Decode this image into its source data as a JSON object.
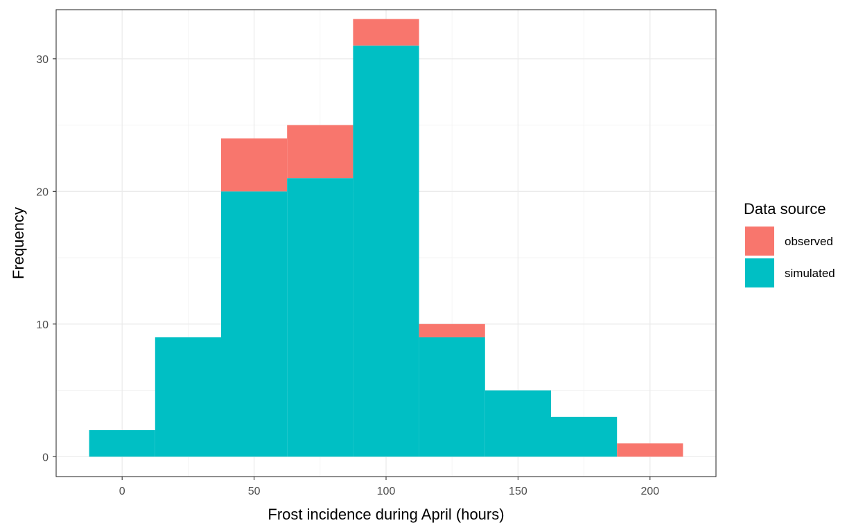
{
  "chart_data": {
    "type": "bar",
    "stacked": true,
    "bin_width": 25,
    "bins": [
      {
        "x": 0,
        "simulated": 2,
        "observed": 0
      },
      {
        "x": 25,
        "simulated": 9,
        "observed": 0
      },
      {
        "x": 50,
        "simulated": 20,
        "observed": 4
      },
      {
        "x": 75,
        "simulated": 21,
        "observed": 4
      },
      {
        "x": 100,
        "simulated": 31,
        "observed": 2
      },
      {
        "x": 125,
        "simulated": 9,
        "observed": 1
      },
      {
        "x": 150,
        "simulated": 5,
        "observed": 0
      },
      {
        "x": 175,
        "simulated": 3,
        "observed": 0
      },
      {
        "x": 200,
        "simulated": 0,
        "observed": 1
      }
    ],
    "series": [
      {
        "name": "observed",
        "color": "#F8766D"
      },
      {
        "name": "simulated",
        "color": "#00BFC4"
      }
    ],
    "xlabel": "Frost incidence during April (hours)",
    "ylabel": "Frequency",
    "xlim": [
      -25,
      225
    ],
    "ylim": [
      -1.5,
      33.7
    ],
    "x_ticks": [
      0,
      50,
      100,
      150,
      200
    ],
    "y_ticks": [
      0,
      10,
      20,
      30
    ],
    "grid": true,
    "legend": {
      "title": "Data source",
      "position": "right"
    }
  }
}
